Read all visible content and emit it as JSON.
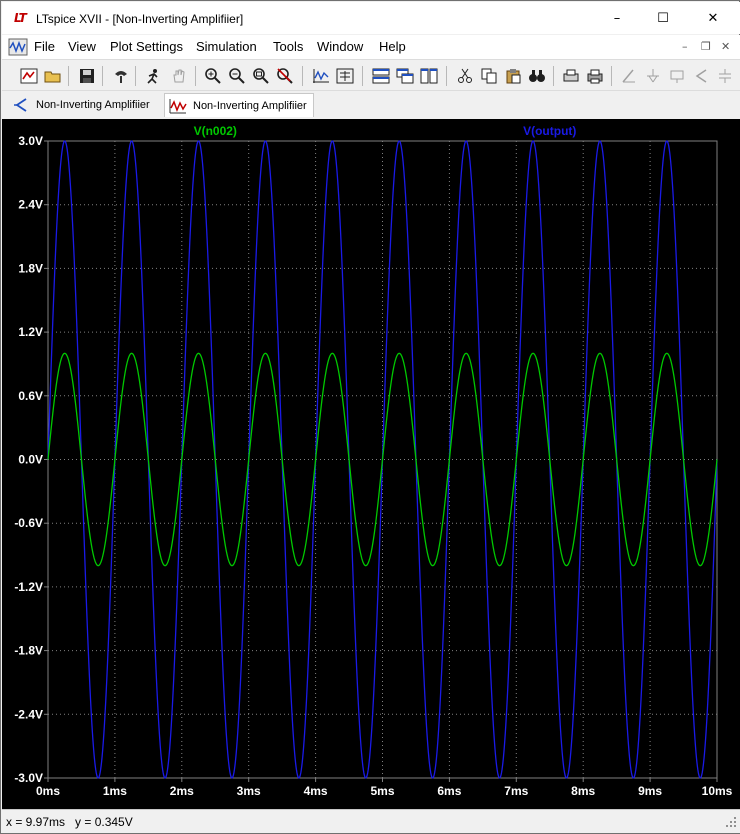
{
  "window": {
    "logo": "LT",
    "title": "LTspice XVII - [Non-Inverting Amplifiier]",
    "minimize": "–",
    "maximize": "☐",
    "close": "✕"
  },
  "menu": {
    "items": [
      "File",
      "View",
      "Plot Settings",
      "Simulation",
      "Tools",
      "Window",
      "Help"
    ],
    "controls": [
      "–",
      "❐",
      "✕"
    ]
  },
  "toolbar": {
    "icons": [
      "schematic-new-icon",
      "open-folder-icon",
      "save-icon",
      "control-panel-icon",
      "run-icon",
      "pan-hand-icon",
      "zoom-in-icon",
      "zoom-out-icon",
      "zoom-fit-icon",
      "zoom-cancel-icon",
      "autorange-icon",
      "manual-limits-icon",
      "tile-horizontal-icon",
      "cascade-icon",
      "tile-vertical-icon",
      "cut-icon",
      "copy-icon",
      "paste-icon",
      "find-icon",
      "print-preview-icon",
      "print-icon",
      "wire-icon",
      "ground-icon",
      "label-icon",
      "component-icon"
    ]
  },
  "tabs": [
    {
      "label": "Non-Inverting Amplifiier",
      "icon": "schematic-icon",
      "active": false
    },
    {
      "label": "Non-Inverting Amplifiier",
      "icon": "waveform-icon",
      "active": true
    }
  ],
  "plot": {
    "background": "#000000",
    "grid_color": "#808080",
    "trace_labels": [
      "V(n002)",
      "V(output)"
    ]
  },
  "chart_data": {
    "type": "line",
    "title": "",
    "xlabel": "",
    "ylabel": "",
    "xlim": [
      0,
      10
    ],
    "ylim": [
      -3.0,
      3.0
    ],
    "x_unit": "ms",
    "x_ticks": [
      "0ms",
      "1ms",
      "2ms",
      "3ms",
      "4ms",
      "5ms",
      "6ms",
      "7ms",
      "8ms",
      "9ms",
      "10ms"
    ],
    "y_ticks": [
      "3.0V",
      "2.4V",
      "1.8V",
      "1.2V",
      "0.6V",
      "0.0V",
      "-0.6V",
      "-1.2V",
      "-1.8V",
      "-2.4V",
      "-3.0V"
    ],
    "y_tick_values": [
      3.0,
      2.4,
      1.8,
      1.2,
      0.6,
      0.0,
      -0.6,
      -1.2,
      -1.8,
      -2.4,
      -3.0
    ],
    "grid": true,
    "series": [
      {
        "name": "V(n002)",
        "color": "#00c800",
        "waveform": "sine",
        "amplitude": 1.0,
        "frequency_khz": 1.0,
        "offset": 0.0
      },
      {
        "name": "V(output)",
        "color": "#1a1ae6",
        "waveform": "sine",
        "amplitude": 3.0,
        "frequency_khz": 1.0,
        "offset": 0.0
      }
    ]
  },
  "status": {
    "text": "x = 9.97ms   y = 0.345V"
  }
}
